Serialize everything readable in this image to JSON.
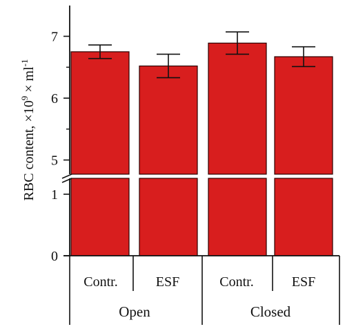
{
  "chart_data": {
    "type": "bar",
    "title": "",
    "ylabel": {
      "main": "RBC content, ×10",
      "exp1": "9",
      "unit": " × ml",
      "exp2": "-1"
    },
    "xlabel": "",
    "y_axis_break": true,
    "ylim_lower": [
      0,
      1.2
    ],
    "ylim_upper": [
      4.8,
      7.5
    ],
    "yticks_lower": [
      "0",
      "1"
    ],
    "yticks_upper": [
      "5",
      "6",
      "7"
    ],
    "groups": [
      "Open",
      "Closed"
    ],
    "categories": [
      "Contr.",
      "ESF",
      "Contr.",
      "ESF"
    ],
    "values": [
      6.75,
      6.52,
      6.89,
      6.67
    ],
    "errors": [
      0.11,
      0.19,
      0.18,
      0.16
    ],
    "bar_color": "#d81e1e",
    "grid": false
  }
}
